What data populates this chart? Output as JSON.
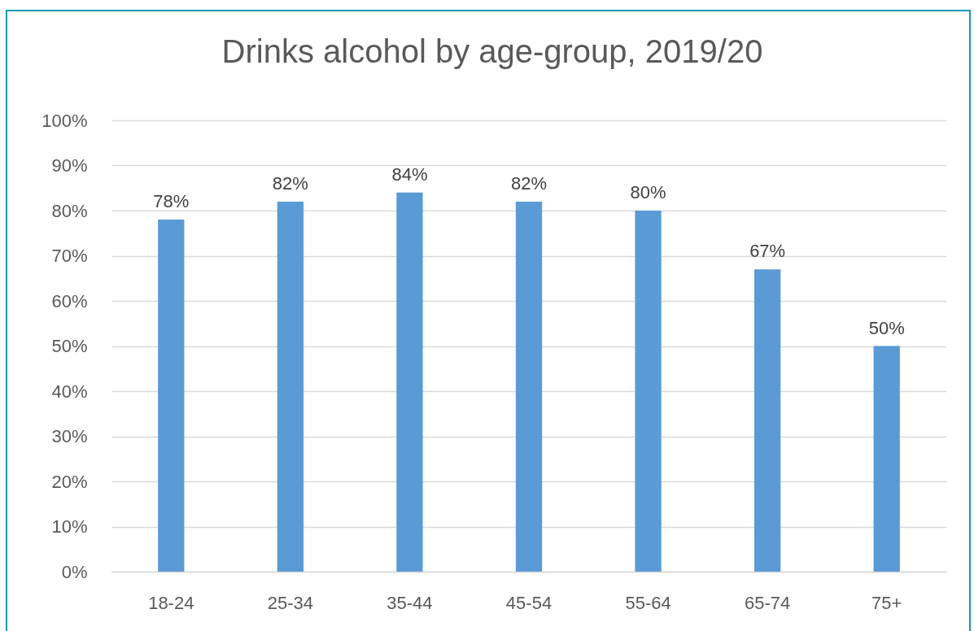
{
  "chart_data": {
    "type": "bar",
    "title": "Drinks alcohol by age-group, 2019/20",
    "categories": [
      "18-24",
      "25-34",
      "35-44",
      "45-54",
      "55-64",
      "65-74",
      "75+"
    ],
    "values": [
      78,
      82,
      84,
      82,
      80,
      67,
      50
    ],
    "value_labels": [
      "78%",
      "82%",
      "84%",
      "82%",
      "80%",
      "67%",
      "50%"
    ],
    "color": "#5b9bd5",
    "ylim": [
      0,
      100
    ],
    "yticks": [
      {
        "value": 0,
        "label": "0%"
      },
      {
        "value": 10,
        "label": "10%"
      },
      {
        "value": 20,
        "label": "20%"
      },
      {
        "value": 30,
        "label": "30%"
      },
      {
        "value": 40,
        "label": "40%"
      },
      {
        "value": 50,
        "label": "50%"
      },
      {
        "value": 60,
        "label": "60%"
      },
      {
        "value": 70,
        "label": "70%"
      },
      {
        "value": 80,
        "label": "80%"
      },
      {
        "value": 90,
        "label": "90%"
      },
      {
        "value": 100,
        "label": "100%"
      }
    ],
    "grid": "y"
  }
}
